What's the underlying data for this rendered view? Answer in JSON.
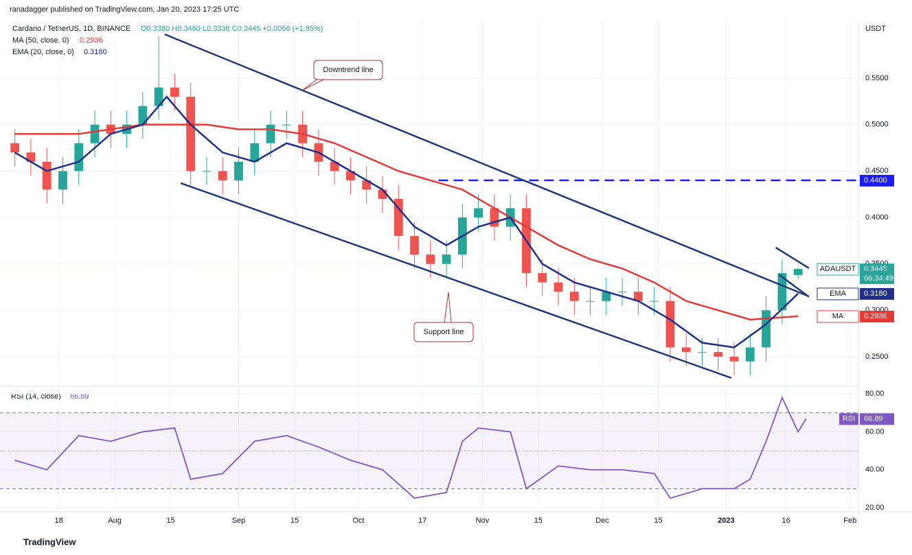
{
  "header": "ranadagger published on TradingView.com, Jan 20, 2023 17:25 UTC",
  "brand": "TradingView",
  "chart_data": [
    {
      "type": "candlestick",
      "title": "Cardano / TetherUS, 1D, BINANCE",
      "ohlc": "O0.3380 H0.3460 L0.3336 C0.3445 +0.0066 (+1.95%)",
      "unit": "USDT",
      "up_color": "#26a69a",
      "down_color": "#ef5350",
      "x": [
        2,
        6,
        10,
        14,
        18,
        22,
        26,
        30,
        34,
        38,
        42,
        46,
        50,
        54,
        58,
        62,
        66,
        70,
        74,
        78,
        82,
        86,
        90,
        94,
        98,
        102,
        106,
        110,
        114,
        118,
        122,
        126,
        130,
        134,
        138,
        142,
        146,
        150,
        154,
        158,
        162,
        166,
        170,
        174,
        178,
        182,
        186,
        190,
        194,
        198
      ],
      "open": [
        0.48,
        0.47,
        0.46,
        0.43,
        0.45,
        0.48,
        0.5,
        0.49,
        0.5,
        0.52,
        0.54,
        0.53,
        0.45,
        0.45,
        0.44,
        0.46,
        0.48,
        0.5,
        0.5,
        0.48,
        0.46,
        0.45,
        0.44,
        0.43,
        0.42,
        0.38,
        0.36,
        0.35,
        0.36,
        0.4,
        0.41,
        0.39,
        0.41,
        0.34,
        0.33,
        0.32,
        0.31,
        0.31,
        0.32,
        0.32,
        0.31,
        0.31,
        0.26,
        0.255,
        0.255,
        0.25,
        0.245,
        0.26,
        0.3,
        0.338
      ],
      "high": [
        0.495,
        0.485,
        0.475,
        0.465,
        0.495,
        0.515,
        0.515,
        0.515,
        0.535,
        0.595,
        0.555,
        0.545,
        0.465,
        0.465,
        0.475,
        0.495,
        0.515,
        0.515,
        0.515,
        0.495,
        0.475,
        0.465,
        0.455,
        0.445,
        0.435,
        0.395,
        0.375,
        0.375,
        0.415,
        0.425,
        0.425,
        0.425,
        0.425,
        0.355,
        0.345,
        0.335,
        0.325,
        0.335,
        0.335,
        0.335,
        0.325,
        0.325,
        0.275,
        0.27,
        0.27,
        0.265,
        0.275,
        0.315,
        0.355,
        0.346
      ],
      "low": [
        0.455,
        0.445,
        0.415,
        0.415,
        0.435,
        0.465,
        0.475,
        0.475,
        0.485,
        0.505,
        0.515,
        0.435,
        0.435,
        0.425,
        0.425,
        0.445,
        0.465,
        0.485,
        0.465,
        0.445,
        0.435,
        0.425,
        0.415,
        0.405,
        0.365,
        0.345,
        0.335,
        0.335,
        0.345,
        0.385,
        0.375,
        0.375,
        0.325,
        0.315,
        0.305,
        0.295,
        0.295,
        0.295,
        0.305,
        0.295,
        0.295,
        0.245,
        0.24,
        0.24,
        0.235,
        0.23,
        0.23,
        0.245,
        0.285,
        0.3336
      ],
      "close": [
        0.47,
        0.46,
        0.43,
        0.45,
        0.48,
        0.5,
        0.49,
        0.5,
        0.52,
        0.54,
        0.53,
        0.45,
        0.45,
        0.44,
        0.46,
        0.48,
        0.5,
        0.5,
        0.48,
        0.46,
        0.45,
        0.44,
        0.43,
        0.42,
        0.38,
        0.36,
        0.35,
        0.36,
        0.4,
        0.41,
        0.39,
        0.41,
        0.34,
        0.33,
        0.32,
        0.31,
        0.31,
        0.32,
        0.32,
        0.31,
        0.31,
        0.26,
        0.255,
        0.255,
        0.25,
        0.245,
        0.26,
        0.3,
        0.34,
        0.3445
      ],
      "series": [
        {
          "name": "MA (50, close, 0)",
          "label": "0.2936",
          "color": "#e53935",
          "x": [
            2,
            10,
            18,
            26,
            34,
            42,
            50,
            58,
            66,
            74,
            82,
            90,
            98,
            106,
            114,
            122,
            130,
            138,
            146,
            154,
            162,
            170,
            178,
            186,
            198
          ],
          "values": [
            0.49,
            0.49,
            0.49,
            0.495,
            0.5,
            0.5,
            0.5,
            0.495,
            0.495,
            0.49,
            0.48,
            0.465,
            0.45,
            0.44,
            0.43,
            0.41,
            0.39,
            0.37,
            0.355,
            0.345,
            0.33,
            0.31,
            0.3,
            0.29,
            0.2936
          ]
        },
        {
          "name": "EMA (20, close, 0)",
          "label": "0.3180",
          "color": "#1f2f8a",
          "x": [
            2,
            10,
            18,
            26,
            34,
            40,
            46,
            54,
            62,
            70,
            78,
            86,
            94,
            102,
            110,
            118,
            126,
            134,
            142,
            150,
            158,
            166,
            174,
            182,
            190,
            198
          ],
          "values": [
            0.47,
            0.45,
            0.46,
            0.49,
            0.5,
            0.53,
            0.5,
            0.47,
            0.46,
            0.48,
            0.47,
            0.45,
            0.43,
            0.39,
            0.37,
            0.39,
            0.4,
            0.35,
            0.33,
            0.32,
            0.31,
            0.29,
            0.265,
            0.26,
            0.285,
            0.318
          ]
        }
      ],
      "tags": [
        {
          "name": "ADAUSDT",
          "label": "0.3445",
          "time": "06:34:49",
          "value": 0.3445,
          "color": "#26a69a"
        },
        {
          "name": "EMA",
          "label": "0.3180",
          "value": 0.318,
          "color": "#1f2f8a"
        },
        {
          "name": "MA",
          "label": "0.2936",
          "value": 0.2936,
          "color": "#e53935"
        },
        {
          "label": "0.4400",
          "value": 0.44,
          "color": "#1a1aff"
        }
      ],
      "drawings": [
        {
          "label": "Downtrend line",
          "x": [
            39.5,
            200.7
          ],
          "y": [
            0.5973,
            0.315
          ]
        },
        {
          "label": "Support line",
          "x": [
            43.5,
            181.3
          ],
          "y": [
            0.437,
            0.2271
          ]
        },
        {
          "x": [
            192.4,
            200.7
          ],
          "y": [
            0.3676,
            0.3454
          ]
        },
        {
          "x": [
            193.3,
            200.7
          ],
          "y": [
            0.3381,
            0.3145
          ]
        }
      ],
      "level": {
        "value": 0.44,
        "x": [
          108,
          213.1
        ]
      },
      "xlim": [
        0,
        213.1
      ],
      "ylim": [
        0.2204,
        0.6121
      ],
      "yticks": [
        {
          "value": 0.25,
          "label": "0.2500"
        },
        {
          "value": 0.3,
          "label": "0.3000"
        },
        {
          "value": 0.35,
          "label": "0.3500"
        },
        {
          "value": 0.4,
          "label": "0.4000"
        },
        {
          "value": 0.45,
          "label": "0.4500"
        },
        {
          "value": 0.5,
          "label": "0.5000"
        },
        {
          "value": 0.55,
          "label": "0.5500"
        }
      ],
      "xticks": [
        {
          "value": 13,
          "label": "18"
        },
        {
          "value": 27,
          "label": "Aug"
        },
        {
          "value": 41,
          "label": "15"
        },
        {
          "value": 58,
          "label": "Sep"
        },
        {
          "value": 72,
          "label": "15"
        },
        {
          "value": 88,
          "label": "Oct"
        },
        {
          "value": 104,
          "label": "17"
        },
        {
          "value": 119,
          "label": "Nov"
        },
        {
          "value": 133,
          "label": "15"
        },
        {
          "value": 149,
          "label": "Dec"
        },
        {
          "value": 163,
          "label": "15"
        },
        {
          "value": 180,
          "label": "2023"
        },
        {
          "value": 195,
          "label": "16"
        },
        {
          "value": 211,
          "label": "Feb"
        }
      ]
    },
    {
      "type": "line",
      "title": "RSI (14, close)",
      "label": "66.89",
      "tag": "RSI",
      "color": "#7e57c2",
      "x": [
        2,
        10,
        18,
        26,
        34,
        42,
        46,
        54,
        62,
        70,
        78,
        86,
        94,
        102,
        110,
        114,
        118,
        126,
        130,
        138,
        146,
        154,
        162,
        166,
        174,
        182,
        186,
        190,
        194,
        198,
        200
      ],
      "values": [
        45,
        40,
        58,
        55,
        60,
        62,
        35,
        38,
        55,
        58,
        52,
        45,
        40,
        25,
        28,
        55,
        62,
        60,
        30,
        42,
        40,
        40,
        38,
        25,
        30,
        30,
        35,
        55,
        78,
        60,
        66.89
      ],
      "levels": [
        30,
        50,
        70
      ],
      "ylim": [
        18.2,
        83.3
      ],
      "yticks": [
        {
          "value": 20,
          "label": "20.00"
        },
        {
          "value": 40,
          "label": "40.00"
        },
        {
          "value": 60,
          "label": "60.00"
        },
        {
          "value": 80,
          "label": "80.00"
        }
      ]
    }
  ]
}
